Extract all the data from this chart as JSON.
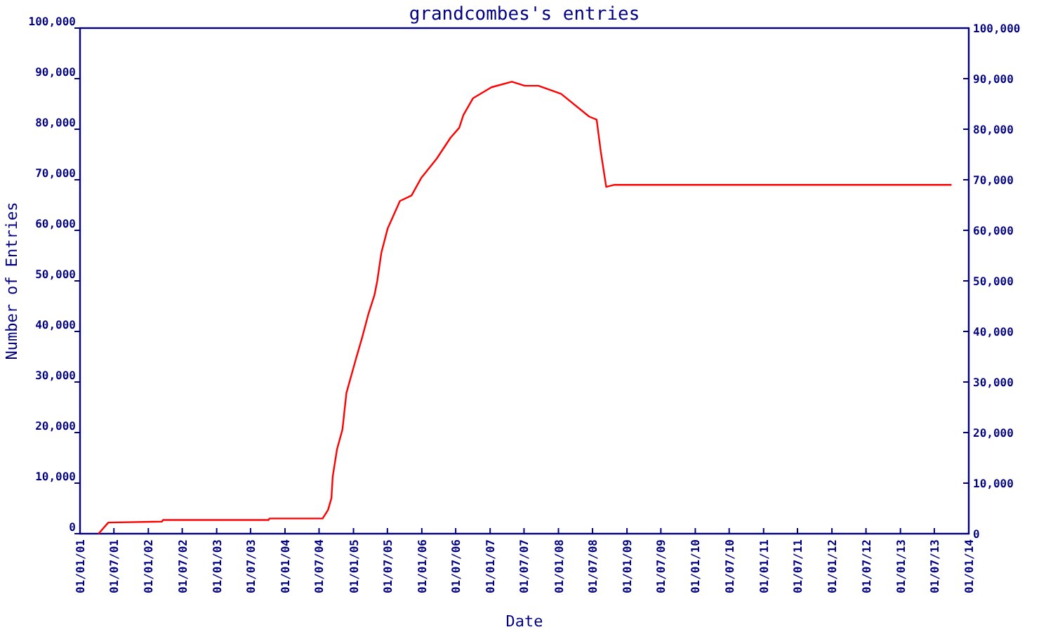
{
  "chart_data": {
    "type": "line",
    "title": "grandcombes's entries",
    "xlabel": "Date",
    "ylabel": "Number of Entries",
    "x": [
      "2001-04-10",
      "2001-06-01",
      "2002-03-15",
      "2002-03-20",
      "2003-10-05",
      "2003-10-10",
      "2004-07-20",
      "2004-08-18",
      "2004-09-05",
      "2004-09-12",
      "2004-10-05",
      "2004-11-03",
      "2004-11-24",
      "2005-01-12",
      "2005-02-17",
      "2005-03-22",
      "2005-04-23",
      "2005-05-08",
      "2005-05-30",
      "2005-07-02",
      "2005-09-06",
      "2005-11-07",
      "2005-12-28",
      "2006-03-22",
      "2006-06-03",
      "2006-07-20",
      "2006-08-11",
      "2006-10-01",
      "2007-01-08",
      "2007-04-27",
      "2007-07-05",
      "2007-09-16",
      "2008-01-15",
      "2008-06-13",
      "2008-07-23",
      "2008-08-14",
      "2008-09-12",
      "2008-10-26",
      "2013-10-01"
    ],
    "series": [
      {
        "color": "#ff0000",
        "values": [
          0,
          2200,
          2400,
          2700,
          2700,
          3000,
          3000,
          4700,
          7000,
          11300,
          16700,
          20600,
          27800,
          34300,
          38900,
          43500,
          47200,
          50000,
          55600,
          60300,
          65800,
          66900,
          70300,
          74200,
          78300,
          80300,
          82800,
          86100,
          88300,
          89400,
          88600,
          88600,
          87000,
          82500,
          81900,
          75600,
          68600,
          69000,
          69000
        ]
      }
    ],
    "xlim": [
      "2001-01-01",
      "2014-01-01"
    ],
    "xticks": [
      {
        "value": "2001-01-01",
        "label": "01/01/01"
      },
      {
        "value": "2001-07-01",
        "label": "01/07/01"
      },
      {
        "value": "2002-01-01",
        "label": "01/01/02"
      },
      {
        "value": "2002-07-01",
        "label": "01/07/02"
      },
      {
        "value": "2003-01-01",
        "label": "01/01/03"
      },
      {
        "value": "2003-07-01",
        "label": "01/07/03"
      },
      {
        "value": "2004-01-01",
        "label": "01/01/04"
      },
      {
        "value": "2004-07-01",
        "label": "01/07/04"
      },
      {
        "value": "2005-01-01",
        "label": "01/01/05"
      },
      {
        "value": "2005-07-01",
        "label": "01/07/05"
      },
      {
        "value": "2006-01-01",
        "label": "01/01/06"
      },
      {
        "value": "2006-07-01",
        "label": "01/07/06"
      },
      {
        "value": "2007-01-01",
        "label": "01/01/07"
      },
      {
        "value": "2007-07-01",
        "label": "01/07/07"
      },
      {
        "value": "2008-01-01",
        "label": "01/01/08"
      },
      {
        "value": "2008-07-01",
        "label": "01/07/08"
      },
      {
        "value": "2009-01-01",
        "label": "01/01/09"
      },
      {
        "value": "2009-07-01",
        "label": "01/07/09"
      },
      {
        "value": "2010-01-01",
        "label": "01/01/10"
      },
      {
        "value": "2010-07-01",
        "label": "01/07/10"
      },
      {
        "value": "2011-01-01",
        "label": "01/01/11"
      },
      {
        "value": "2011-07-01",
        "label": "01/07/11"
      },
      {
        "value": "2012-01-01",
        "label": "01/01/12"
      },
      {
        "value": "2012-07-01",
        "label": "01/07/12"
      },
      {
        "value": "2013-01-01",
        "label": "01/01/13"
      },
      {
        "value": "2013-07-01",
        "label": "01/07/13"
      },
      {
        "value": "2014-01-01",
        "label": "01/01/14"
      }
    ],
    "ylim": [
      0,
      100000
    ],
    "yticks": [
      0,
      {
        "value": 10000,
        "label": "10,000"
      },
      {
        "value": 20000,
        "label": "20,000"
      },
      {
        "value": 30000,
        "label": "30,000"
      },
      {
        "value": 40000,
        "label": "40,000"
      },
      {
        "value": 50000,
        "label": "50,000"
      },
      {
        "value": 60000,
        "label": "60,000"
      },
      {
        "value": 70000,
        "label": "70,000"
      },
      {
        "value": 80000,
        "label": "80,000"
      },
      {
        "value": 90000,
        "label": "90,000"
      },
      {
        "value": 100000,
        "label": "100,000"
      }
    ],
    "y2lim": [
      0,
      100000
    ],
    "y2ticks": [
      0,
      {
        "value": 10000,
        "label": "10,000"
      },
      {
        "value": 20000,
        "label": "20,000"
      },
      {
        "value": 30000,
        "label": "30,000"
      },
      {
        "value": 40000,
        "label": "40,000"
      },
      {
        "value": 50000,
        "label": "50,000"
      },
      {
        "value": 60000,
        "label": "60,000"
      },
      {
        "value": 70000,
        "label": "70,000"
      },
      {
        "value": 80000,
        "label": "80,000"
      },
      {
        "value": 90000,
        "label": "90,000"
      },
      {
        "value": 100000,
        "label": "100,000"
      }
    ],
    "tick_labels": "xy"
  }
}
